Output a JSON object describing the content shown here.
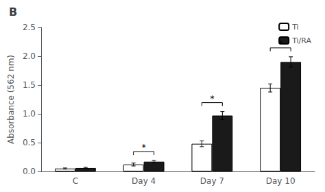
{
  "chart_data": {
    "type": "bar",
    "title": "B",
    "categories": [
      "C",
      "Day 4",
      "Day 7",
      "Day 10"
    ],
    "series": [
      {
        "name": "Ti",
        "color": "#ffffff",
        "values": [
          0.05,
          0.12,
          0.48,
          1.45
        ],
        "errors": [
          0.01,
          0.025,
          0.05,
          0.07
        ]
      },
      {
        "name": "Ti/RA",
        "color": "#1a1a1a",
        "values": [
          0.06,
          0.17,
          0.97,
          1.9
        ],
        "errors": [
          0.01,
          0.02,
          0.07,
          0.09
        ]
      }
    ],
    "ylabel": "Absorbance (562 nm)",
    "ylim": [
      0,
      2.5
    ],
    "yticks": [
      {
        "value": 0,
        "label": "0.0"
      },
      0.5,
      {
        "value": 1.0,
        "label": "1.0"
      },
      1.5,
      {
        "value": 2.0,
        "label": "2.0"
      },
      2.5
    ],
    "grid": false,
    "legend": "upper right",
    "annotations": [
      {
        "category": "Day 4",
        "text": "*"
      },
      {
        "category": "Day 7",
        "text": "*"
      },
      {
        "category": "Day 10",
        "text": "*"
      }
    ]
  }
}
